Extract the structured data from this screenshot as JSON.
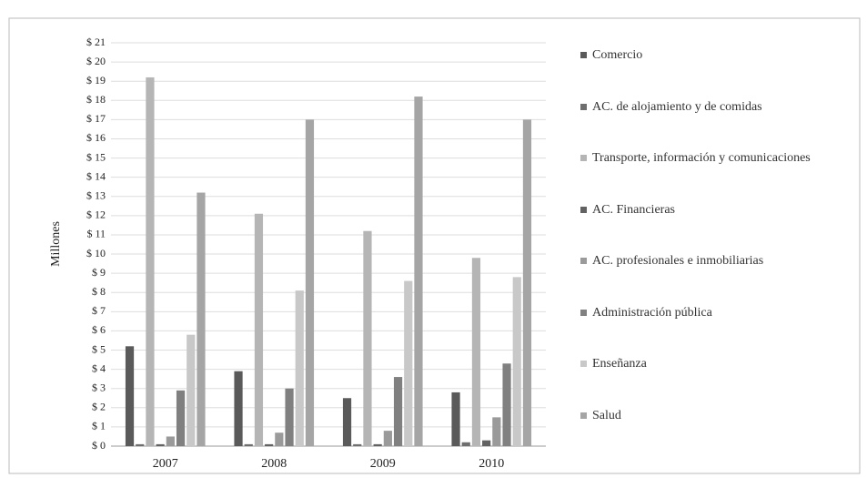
{
  "chart_data": {
    "type": "bar",
    "y_label": "Millones",
    "categories": [
      "2007",
      "2008",
      "2009",
      "2010"
    ],
    "series": [
      {
        "name": "Comercio",
        "color": "#5a5a5a",
        "values": [
          5.2,
          3.9,
          2.5,
          2.8
        ]
      },
      {
        "name": "AC. de alojamiento y de comidas",
        "color": "#6e6e6e",
        "values": [
          0.1,
          0.1,
          0.1,
          0.2
        ]
      },
      {
        "name": "Transporte, información y comunicaciones",
        "color": "#b5b5b5",
        "values": [
          19.2,
          12.1,
          11.2,
          9.8
        ]
      },
      {
        "name": "AC. Financieras",
        "color": "#626262",
        "values": [
          0.1,
          0.1,
          0.1,
          0.3
        ]
      },
      {
        "name": "AC. profesionales e inmobiliarias",
        "color": "#9a9a9a",
        "values": [
          0.5,
          0.7,
          0.8,
          1.5
        ]
      },
      {
        "name": "Administración pública",
        "color": "#808080",
        "values": [
          2.9,
          3.0,
          3.6,
          4.3
        ]
      },
      {
        "name": "Enseñanza",
        "color": "#c8c8c8",
        "values": [
          5.8,
          8.1,
          8.6,
          8.8
        ]
      },
      {
        "name": "Salud",
        "color": "#a5a5a5",
        "values": [
          13.2,
          17.0,
          18.2,
          17.0
        ]
      }
    ],
    "ylim": [
      0,
      21
    ],
    "yticks": [
      {
        "value": 0,
        "label": "$ 0"
      },
      {
        "value": 1,
        "label": "$ 1"
      },
      {
        "value": 2,
        "label": "$ 2"
      },
      {
        "value": 3,
        "label": "$ 3"
      },
      {
        "value": 4,
        "label": "$ 4"
      },
      {
        "value": 5,
        "label": "$ 5"
      },
      {
        "value": 6,
        "label": "$ 6"
      },
      {
        "value": 7,
        "label": "$ 7"
      },
      {
        "value": 8,
        "label": "$ 8"
      },
      {
        "value": 9,
        "label": "$ 9"
      },
      {
        "value": 10,
        "label": "$ 10"
      },
      {
        "value": 11,
        "label": "$ 11"
      },
      {
        "value": 12,
        "label": "$ 12"
      },
      {
        "value": 13,
        "label": "$ 13"
      },
      {
        "value": 14,
        "label": "$ 14"
      },
      {
        "value": 15,
        "label": "$ 15"
      },
      {
        "value": 16,
        "label": "$ 16"
      },
      {
        "value": 17,
        "label": "$ 17"
      },
      {
        "value": 18,
        "label": "$ 18"
      },
      {
        "value": 19,
        "label": "$ 19"
      },
      {
        "value": 20,
        "label": "$ 20"
      },
      {
        "value": 21,
        "label": "$ 21"
      }
    ],
    "grid": true,
    "legend": "right"
  }
}
